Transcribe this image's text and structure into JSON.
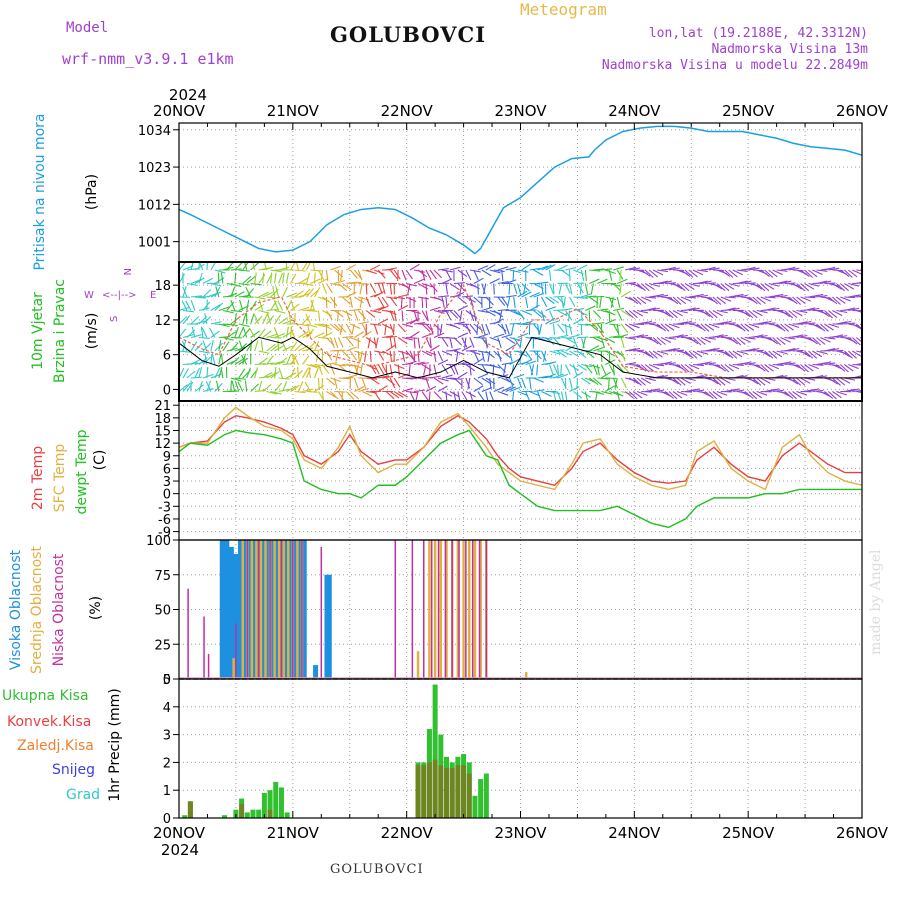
{
  "header": {
    "model_label": "Model",
    "model_name": "wrf-nmm_v3.9.1 e1km",
    "station": "GOLUBOVCI",
    "meteogram": "Meteogram",
    "lonlat": "lon,lat (19.2188E, 42.3312N)",
    "elevation": "Nadmorska Visina 13m",
    "model_elevation": "Nadmorska Visina u modelu 22.2849m",
    "year": "2024"
  },
  "footer": {
    "station": "GOLUBOVCI",
    "watermark": "made by Angel"
  },
  "colors": {
    "pressure": "#1aa0e0",
    "temp2m": "#e84040",
    "sfc": "#e0b040",
    "dew": "#20c020",
    "high_cloud": "#1e90e0",
    "mid_cloud": "#e0b040",
    "low_cloud": "#c030a0",
    "total_precip": "#30c030",
    "conv_precip": "#e84040",
    "frozen": "#f08030",
    "snow": "#4040e0",
    "hail": "#30c8c8",
    "wind_axis": "#a040d0"
  },
  "chart_data": [
    {
      "type": "line",
      "panel": "pressure",
      "ylabel": "Pritisak na nivou mora",
      "unit": "(hPa)",
      "x_days": [
        "20NOV",
        "21NOV",
        "22NOV",
        "23NOV",
        "24NOV",
        "25NOV",
        "26NOV"
      ],
      "yticks": [
        1001,
        1012,
        1023,
        1034
      ],
      "ylim": [
        995,
        1036
      ],
      "series": [
        {
          "x": [
            0,
            0.1,
            0.25,
            0.4,
            0.55,
            0.7,
            0.85,
            1.0,
            1.15,
            1.3,
            1.45,
            1.6,
            1.75,
            1.9,
            2.05,
            2.2,
            2.35,
            2.5,
            2.6,
            2.65,
            2.75,
            2.85,
            3.0,
            3.15,
            3.3,
            3.45,
            3.6,
            3.65,
            3.75,
            3.9,
            4.05,
            4.2,
            4.35,
            4.5,
            4.65,
            4.8,
            4.95,
            5.1,
            5.25,
            5.4,
            5.55,
            5.7,
            5.85,
            6.0
          ],
          "y": [
            1010.5,
            1009,
            1006.5,
            1004,
            1001.5,
            999,
            998,
            998.5,
            1001,
            1006,
            1009,
            1010.5,
            1011,
            1010.5,
            1008,
            1005,
            1003,
            1000,
            997.5,
            999,
            1005,
            1011,
            1014,
            1018.5,
            1023,
            1025.5,
            1026,
            1028,
            1031,
            1033.5,
            1034.5,
            1035,
            1035,
            1034.5,
            1033.5,
            1033.5,
            1033.5,
            1032.5,
            1031.5,
            1030,
            1029,
            1028.5,
            1028,
            1026.5
          ]
        }
      ]
    },
    {
      "type": "line",
      "panel": "wind",
      "ylabel_1": "10m Vjetar",
      "ylabel_2": "Brzina i Pravac",
      "unit": "(m/s)",
      "compass": {
        "n": "N",
        "s": "S",
        "w": "W",
        "e": "E"
      },
      "yticks": [
        0,
        6,
        12,
        18
      ],
      "ylim": [
        -2,
        22
      ],
      "series": [
        {
          "name": "speed",
          "x": [
            0,
            0.2,
            0.35,
            0.5,
            0.7,
            0.9,
            1.0,
            1.15,
            1.3,
            1.5,
            1.7,
            1.9,
            2.1,
            2.3,
            2.5,
            2.7,
            2.9,
            3.1,
            3.3,
            3.5,
            3.7,
            3.9,
            4.2,
            4.5,
            4.8,
            5.1,
            5.4,
            5.7,
            6.0
          ],
          "y": [
            8,
            5,
            4,
            6,
            9,
            8,
            9,
            7,
            4,
            3,
            2,
            3,
            2,
            3,
            5,
            3,
            2,
            9,
            8,
            7,
            6,
            3,
            2,
            2,
            2,
            2,
            2,
            2,
            2
          ]
        },
        {
          "name": "gust",
          "x": [
            0,
            0.2,
            0.35,
            0.5,
            0.7,
            0.9,
            1.0,
            1.15,
            1.3,
            1.5,
            1.7,
            1.9,
            2.1,
            2.3,
            2.5,
            2.7,
            2.9,
            3.1,
            3.3,
            3.5,
            3.7,
            3.9,
            4.2,
            4.5,
            4.8,
            5.1,
            5.4,
            5.7,
            6.0
          ],
          "y": [
            9,
            7,
            6,
            12,
            15,
            16,
            12,
            9,
            6,
            5,
            4,
            5,
            6,
            13,
            18,
            8,
            6,
            12,
            12,
            14,
            10,
            4,
            3,
            3,
            2,
            2,
            2,
            2,
            2
          ]
        }
      ]
    },
    {
      "type": "line",
      "panel": "temperature",
      "ylabel_1": "2m Temp",
      "ylabel_2": "SFC Temp",
      "ylabel_3": "dewpt Temp",
      "unit": "(C)",
      "yticks": [
        -9,
        -6,
        -3,
        0,
        3,
        6,
        9,
        12,
        15,
        18,
        21
      ],
      "ylim": [
        -11,
        22
      ],
      "x": [
        0,
        0.1,
        0.25,
        0.4,
        0.5,
        0.6,
        0.75,
        0.9,
        1.0,
        1.1,
        1.25,
        1.4,
        1.5,
        1.6,
        1.75,
        1.9,
        2.0,
        2.15,
        2.3,
        2.45,
        2.55,
        2.7,
        2.8,
        2.9,
        3.0,
        3.15,
        3.3,
        3.45,
        3.55,
        3.7,
        3.85,
        4.0,
        4.15,
        4.3,
        4.45,
        4.55,
        4.7,
        4.85,
        5.0,
        5.15,
        5.3,
        5.45,
        5.55,
        5.7,
        5.85,
        6.0
      ],
      "series": [
        {
          "name": "2m Temp",
          "y": [
            11,
            12,
            12.5,
            17,
            18.5,
            18,
            17,
            15.5,
            14,
            9,
            7,
            10,
            14,
            10,
            7,
            8,
            8,
            11,
            16,
            18.5,
            17,
            13,
            9,
            6,
            4,
            3,
            2,
            6,
            10,
            12,
            8,
            5,
            3,
            2.5,
            3,
            8,
            11,
            7,
            4,
            3,
            9,
            12,
            10,
            7,
            5,
            5
          ]
        },
        {
          "name": "SFC Temp",
          "y": [
            11,
            12,
            12,
            18,
            20.5,
            18.5,
            16,
            15,
            13,
            8,
            6,
            11,
            16,
            9,
            5,
            7,
            7,
            11,
            17,
            19,
            16,
            11,
            7,
            5,
            3,
            2,
            1,
            7,
            12,
            13,
            7,
            4,
            2,
            1,
            2,
            10,
            12.5,
            6,
            3,
            1,
            11,
            14,
            9,
            5,
            3,
            2
          ]
        },
        {
          "name": "dewpt Temp",
          "y": [
            10,
            12,
            11.5,
            14,
            15,
            14.5,
            14,
            13,
            12,
            3,
            1,
            0,
            0,
            -1,
            2,
            2,
            4,
            8,
            12,
            14,
            15,
            9,
            8,
            2,
            0,
            -3,
            -4,
            -4,
            -4,
            -4,
            -3,
            -5,
            -7,
            -8,
            -6,
            -3,
            -1,
            -1,
            -1,
            0,
            0,
            1,
            1,
            1,
            1,
            1
          ]
        }
      ]
    },
    {
      "type": "bar",
      "panel": "cloud",
      "ylabel_1": "Visoka Oblacnost",
      "ylabel_2": "Srednja Oblacnost",
      "ylabel_3": "Niska Oblacnost",
      "unit": "(%)",
      "yticks": [
        0,
        25,
        50,
        75,
        100
      ],
      "ylim": [
        0,
        100
      ],
      "series": [
        {
          "name": "Visoka Oblacnost",
          "x": [
            0.38,
            0.42,
            0.46,
            0.5,
            0.54,
            0.58,
            0.62,
            0.66,
            0.7,
            0.74,
            0.78,
            0.82,
            0.86,
            0.9,
            0.94,
            0.98,
            1.02,
            1.06,
            1.1,
            1.2,
            1.3,
            1.32
          ],
          "y": [
            100,
            100,
            95,
            90,
            100,
            100,
            100,
            100,
            100,
            100,
            100,
            100,
            100,
            100,
            100,
            100,
            100,
            100,
            100,
            10,
            75,
            75
          ]
        },
        {
          "name": "Srednja Oblacnost",
          "x": [
            0.48,
            0.56,
            0.6,
            0.64,
            0.68,
            0.72,
            0.76,
            0.8,
            0.84,
            0.88,
            0.92,
            0.96,
            1.0,
            1.04,
            1.08,
            2.1,
            2.2,
            2.25,
            2.3,
            2.35,
            2.4,
            2.45,
            2.5,
            2.55,
            2.6,
            2.65,
            2.7,
            3.05
          ],
          "y": [
            15,
            100,
            100,
            100,
            100,
            100,
            100,
            100,
            100,
            100,
            100,
            100,
            100,
            100,
            100,
            20,
            100,
            100,
            100,
            100,
            100,
            100,
            100,
            100,
            100,
            100,
            100,
            5
          ]
        },
        {
          "name": "Niska Oblacnost",
          "x": [
            0.08,
            0.22,
            0.26,
            0.5,
            0.6,
            0.7,
            0.8,
            0.9,
            1.0,
            1.08,
            1.25,
            1.9,
            2.05,
            2.15,
            2.22,
            2.28,
            2.34,
            2.4,
            2.46,
            2.52,
            2.58,
            2.64,
            2.7
          ],
          "y": [
            65,
            45,
            18,
            40,
            100,
            100,
            100,
            100,
            100,
            100,
            95,
            100,
            100,
            100,
            100,
            100,
            100,
            100,
            100,
            100,
            100,
            100,
            100
          ]
        }
      ]
    },
    {
      "type": "bar",
      "panel": "precip",
      "ylabel": "1hr Precip (mm)",
      "legend": [
        "Ukupna Kisa",
        "Konvek.Kisa",
        "Zaledj.Kisa",
        "Snijeg",
        "Grad"
      ],
      "yticks": [
        0,
        1,
        2,
        3,
        4,
        5
      ],
      "ylim": [
        0,
        5
      ],
      "series": [
        {
          "name": "Ukupna Kisa",
          "x": [
            0.05,
            0.1,
            0.4,
            0.5,
            0.55,
            0.6,
            0.65,
            0.7,
            0.75,
            0.8,
            0.85,
            0.9,
            0.95,
            2.1,
            2.15,
            2.2,
            2.25,
            2.3,
            2.35,
            2.4,
            2.45,
            2.5,
            2.55,
            2.6,
            2.65,
            2.7
          ],
          "y": [
            0.1,
            0.6,
            0.1,
            0.3,
            0.7,
            0.2,
            0.3,
            0.3,
            0.9,
            1.0,
            1.3,
            1.1,
            0.2,
            2.0,
            2.0,
            3.2,
            4.8,
            3.0,
            2.2,
            2.0,
            2.2,
            2.3,
            2.0,
            0.8,
            1.4,
            1.6
          ]
        },
        {
          "name": "Konvek.Kisa",
          "x": [
            0.1,
            0.55,
            0.8,
            2.1,
            2.15,
            2.2,
            2.25,
            2.3,
            2.35,
            2.4,
            2.45,
            2.5,
            2.55
          ],
          "y": [
            0.6,
            0.5,
            0.3,
            1.9,
            1.9,
            2.0,
            2.1,
            1.9,
            1.8,
            1.8,
            1.9,
            1.9,
            1.6
          ]
        }
      ]
    }
  ]
}
